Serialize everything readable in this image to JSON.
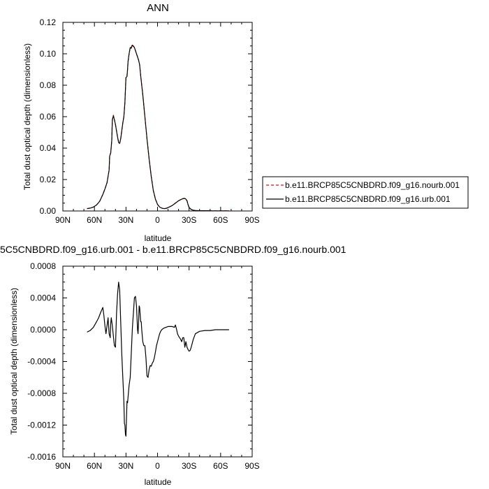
{
  "chart_data": [
    {
      "type": "line",
      "title": "ANN",
      "xlabel": "latitude",
      "ylabel": "Total dust optical depth (dimensionless)",
      "xlim": [
        90,
        -90
      ],
      "ylim": [
        0,
        0.12
      ],
      "x_ticks": [
        90,
        60,
        30,
        0,
        -30,
        -60,
        -90
      ],
      "x_tick_labels": [
        "90N",
        "60N",
        "30N",
        "0",
        "30S",
        "60S",
        "90S"
      ],
      "y_ticks": [
        0,
        0.02,
        0.04,
        0.06,
        0.08,
        0.1,
        0.12
      ],
      "y_tick_labels": [
        "0.00",
        "0.02",
        "0.04",
        "0.06",
        "0.08",
        "0.10",
        "0.12"
      ],
      "grid": false,
      "legend_placement": "right",
      "series": [
        {
          "name": "b.e11.BRCP85C5CNBDRD.f09_g16.nourb.001",
          "color": "#ff0000",
          "dash": "dashed",
          "x": [
            67,
            64,
            61,
            58,
            55,
            52,
            50,
            48,
            46,
            45.5,
            44.5,
            43.5,
            43,
            42,
            41,
            40,
            39,
            38,
            37,
            36,
            35,
            34,
            33,
            32,
            31,
            30,
            29,
            28.5,
            28,
            27,
            26,
            25,
            24,
            22,
            20,
            18,
            17,
            16,
            14,
            12,
            10,
            8,
            6,
            4,
            2,
            0,
            -2,
            -4,
            -6,
            -8,
            -10,
            -12,
            -14,
            -16,
            -18,
            -20,
            -22,
            -24,
            -26,
            -27,
            -28,
            -29,
            -30,
            -32,
            -34,
            -36,
            -40,
            -44,
            -48,
            -52,
            -56,
            -60,
            -64,
            -68
          ],
          "values": [
            0.0015,
            0.0018,
            0.0025,
            0.0038,
            0.0062,
            0.0105,
            0.014,
            0.018,
            0.026,
            0.035,
            0.037,
            0.045,
            0.058,
            0.061,
            0.058,
            0.055,
            0.051,
            0.047,
            0.044,
            0.043,
            0.046,
            0.051,
            0.056,
            0.06,
            0.069,
            0.085,
            0.086,
            0.09,
            0.095,
            0.1,
            0.104,
            0.104,
            0.106,
            0.104,
            0.1,
            0.096,
            0.093,
            0.086,
            0.074,
            0.06,
            0.046,
            0.033,
            0.022,
            0.013,
            0.0075,
            0.0042,
            0.0025,
            0.0018,
            0.0015,
            0.0016,
            0.0022,
            0.0028,
            0.0035,
            0.0045,
            0.0055,
            0.0065,
            0.0072,
            0.0078,
            0.008,
            0.0075,
            0.0065,
            0.004,
            0.0022,
            0.001,
            0.0005,
            0.0003,
            0.0002,
            0.0002,
            0.0002,
            0.0001,
            0.0001,
            0.0001,
            0.0001,
            0.0001
          ]
        },
        {
          "name": "b.e11.BRCP85C5CNBDRD.f09_g16.urb.001",
          "color": "#000000",
          "dash": "solid",
          "x": [
            67,
            64,
            61,
            58,
            55,
            52,
            50,
            48,
            46,
            45.5,
            44.5,
            43.5,
            43,
            42,
            41,
            40,
            39,
            38,
            37,
            36,
            35,
            34,
            33,
            32,
            31,
            30,
            29,
            28.5,
            28,
            27,
            26,
            25,
            24,
            22,
            20,
            18,
            17,
            16,
            14,
            12,
            10,
            8,
            6,
            4,
            2,
            0,
            -2,
            -4,
            -6,
            -8,
            -10,
            -12,
            -14,
            -16,
            -18,
            -20,
            -22,
            -24,
            -26,
            -27,
            -28,
            -29,
            -30,
            -32,
            -34,
            -36,
            -40,
            -44,
            -48,
            -52,
            -56,
            -60,
            -64,
            -68
          ],
          "values": [
            0.0015,
            0.0018,
            0.0025,
            0.0038,
            0.0062,
            0.0105,
            0.014,
            0.018,
            0.026,
            0.035,
            0.037,
            0.045,
            0.058,
            0.0605,
            0.058,
            0.055,
            0.051,
            0.047,
            0.0435,
            0.043,
            0.046,
            0.051,
            0.056,
            0.06,
            0.069,
            0.085,
            0.0855,
            0.09,
            0.095,
            0.1,
            0.104,
            0.1035,
            0.1055,
            0.104,
            0.1,
            0.096,
            0.093,
            0.086,
            0.074,
            0.06,
            0.046,
            0.033,
            0.022,
            0.013,
            0.0075,
            0.0042,
            0.0025,
            0.0018,
            0.0015,
            0.0016,
            0.0022,
            0.0028,
            0.0035,
            0.0045,
            0.0055,
            0.0065,
            0.0072,
            0.0078,
            0.008,
            0.0075,
            0.0065,
            0.004,
            0.0022,
            0.001,
            0.0005,
            0.0003,
            0.0002,
            0.0002,
            0.0002,
            0.0001,
            0.0001,
            0.0001,
            0.0001,
            0.0001
          ]
        }
      ]
    },
    {
      "type": "line",
      "title": "5C5CNBDRD.f09_g16.urb.001 - b.e11.BRCP85C5CNBDRD.f09_g16.nourb.001",
      "xlabel": "latitude",
      "ylabel": "Total dust optical depth (dimensionless)",
      "xlim": [
        90,
        -90
      ],
      "ylim": [
        -0.0016,
        0.0008
      ],
      "x_ticks": [
        90,
        60,
        30,
        0,
        -30,
        -60,
        -90
      ],
      "x_tick_labels": [
        "90N",
        "60N",
        "30N",
        "0",
        "30S",
        "60S",
        "90S"
      ],
      "y_ticks": [
        -0.0016,
        -0.0012,
        -0.0008,
        -0.0004,
        0,
        0.0004,
        0.0008
      ],
      "y_tick_labels": [
        "-0.0016",
        "-0.0012",
        "-0.0008",
        "-0.0004",
        "0.0000",
        "0.0004",
        "0.0008"
      ],
      "grid": false,
      "series": [
        {
          "color": "#000000",
          "dash": "solid",
          "x": [
            67,
            64,
            61,
            58,
            56,
            54,
            53,
            52,
            51,
            50,
            49,
            48,
            47,
            46,
            45,
            44.5,
            44,
            43,
            42,
            41,
            40,
            39,
            38,
            37,
            36,
            35,
            34,
            33,
            32.5,
            32,
            31.5,
            31,
            30.5,
            30,
            29,
            28.5,
            28,
            27,
            26,
            25,
            24,
            23.5,
            23,
            22,
            21,
            20,
            19,
            18.5,
            18,
            17.5,
            17,
            16,
            15.5,
            15,
            14,
            13,
            12,
            11,
            10,
            9,
            8,
            7,
            6,
            5,
            4,
            3,
            2,
            1,
            0,
            -1,
            -2,
            -3,
            -4,
            -6,
            -8,
            -10,
            -12,
            -14,
            -16,
            -17,
            -18,
            -19,
            -20,
            -21,
            -22,
            -23,
            -24,
            -25,
            -26,
            -27,
            -28,
            -29,
            -30,
            -31,
            -32,
            -34,
            -36,
            -40,
            -45,
            -50,
            -55,
            -60,
            -65,
            -68
          ],
          "values": [
            -3e-05,
            -1e-05,
            3e-05,
            0.0001,
            0.00015,
            0.00022,
            0.00025,
            0.00028,
            0.00018,
            5e-05,
            -5e-05,
            5e-05,
            0.00015,
            -5e-05,
            -0.0001,
            8e-05,
            0.00015,
            5e-05,
            -8e-05,
            -0.0002,
            -0.00022,
            0.0002,
            0.00045,
            0.0006,
            0.0005,
            0.0001,
            -0.0003,
            -0.0006,
            -0.00075,
            -0.0009,
            -0.00118,
            -0.0012,
            -0.00132,
            -0.00134,
            -0.0009,
            -0.00092,
            -0.00085,
            -0.0007,
            -0.0006,
            -0.0003,
            0.0,
            0.0001,
            0.0002,
            0.0004,
            0.00042,
            0.0003,
            0.0,
            -5e-05,
            0.0001,
            0.0003,
            0.00028,
            0.0001,
            0.0001,
            0.0,
            -0.00015,
            -0.0002,
            -0.0002,
            -0.00035,
            -0.00058,
            -0.0006,
            -0.0005,
            -0.00045,
            -0.00046,
            -0.00042,
            -0.0004,
            -0.00035,
            -0.00028,
            -0.0002,
            -0.00015,
            -0.0001,
            -5e-05,
            -2e-05,
            0.0,
            2e-05,
            3e-05,
            4e-05,
            4e-05,
            4e-05,
            3e-05,
            6e-05,
            1e-05,
            -5e-05,
            -8e-05,
            -0.0001,
            -0.00012,
            -0.00015,
            -0.0001,
            -0.0001,
            -0.00022,
            -0.00015,
            -0.00022,
            -0.00025,
            -0.00027,
            -0.00026,
            -0.00022,
            -0.00012,
            -5e-05,
            -2e-05,
            -1e-05,
            -1e-05,
            0.0,
            0.0,
            0.0,
            0.0
          ]
        }
      ]
    }
  ]
}
